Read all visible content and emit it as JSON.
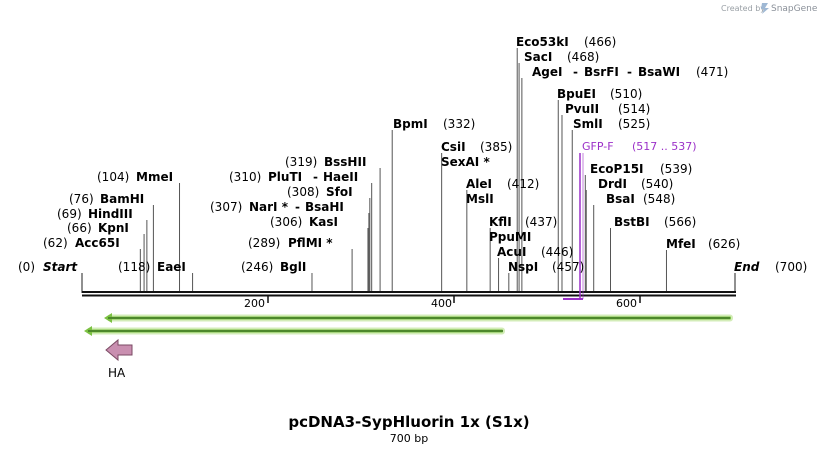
{
  "header": {
    "credit": "Created by",
    "brand": "SnapGene"
  },
  "map": {
    "title": "pcDNA3-SypHluorin 1x (S1x)",
    "length_label": "700 bp",
    "start_label": "Start",
    "start_pos": "(0)",
    "end_label": "End",
    "end_pos": "(700)",
    "ticks": [
      "200",
      "400",
      "600"
    ]
  },
  "enzymes": [
    {
      "id": "acc65i",
      "name": "Acc65I",
      "pos": "(62)",
      "bp": 62
    },
    {
      "id": "kpni",
      "name": "KpnI",
      "pos": "(66)",
      "bp": 66
    },
    {
      "id": "hindiii",
      "name": "HindIII",
      "pos": "(69)",
      "bp": 69
    },
    {
      "id": "bamhi",
      "name": "BamHI",
      "pos": "(76)",
      "bp": 76
    },
    {
      "id": "mmei",
      "name": "MmeI",
      "pos": "(104)",
      "bp": 104
    },
    {
      "id": "eaei",
      "name": "EaeI",
      "pos": "(118)",
      "bp": 118
    },
    {
      "id": "bgli",
      "name": "BglI",
      "pos": "(246)",
      "bp": 246
    },
    {
      "id": "pflmi",
      "name": "PflMI *",
      "pos": "(289)",
      "bp": 289
    },
    {
      "id": "kasi",
      "name": "KasI",
      "pos": "(306)",
      "bp": 306
    },
    {
      "id": "nari",
      "name": "NarI *",
      "name2": "BsaHI",
      "pos": "(307)",
      "bp": 307
    },
    {
      "id": "sfoi",
      "name": "SfoI",
      "pos": "(308)",
      "bp": 308
    },
    {
      "id": "pluti",
      "name": "PluTI",
      "name2": "HaeII",
      "pos": "(310)",
      "bp": 310
    },
    {
      "id": "bsshii",
      "name": "BssHII",
      "pos": "(319)",
      "bp": 319
    },
    {
      "id": "bpmi",
      "name": "BpmI",
      "pos": "(332)",
      "bp": 332
    },
    {
      "id": "csii",
      "name": "CsiI",
      "pos": "(385)",
      "bp": 385
    },
    {
      "id": "sexai",
      "name": "SexAI *",
      "pos": "",
      "bp": 385
    },
    {
      "id": "alei",
      "name": "AleI",
      "pos": "(412)",
      "bp": 412
    },
    {
      "id": "msli",
      "name": "MslI",
      "pos": "",
      "bp": 412
    },
    {
      "id": "kfli",
      "name": "KflI",
      "pos": "(437)",
      "bp": 437
    },
    {
      "id": "ppumi",
      "name": "PpuMI",
      "pos": "",
      "bp": 437
    },
    {
      "id": "acui",
      "name": "AcuI",
      "pos": "(446)",
      "bp": 446
    },
    {
      "id": "nspi",
      "name": "NspI",
      "pos": "(457)",
      "bp": 457
    },
    {
      "id": "eco53ki",
      "name": "Eco53kI",
      "pos": "(466)",
      "bp": 466
    },
    {
      "id": "saci",
      "name": "SacI",
      "pos": "(468)",
      "bp": 468
    },
    {
      "id": "agei",
      "name": "AgeI",
      "name2": "BsrFI",
      "name3": "BsaWI",
      "pos": "(471)",
      "bp": 471
    },
    {
      "id": "bpuei",
      "name": "BpuEI",
      "pos": "(510)",
      "bp": 510
    },
    {
      "id": "pvuii",
      "name": "PvuII",
      "pos": "(514)",
      "bp": 514
    },
    {
      "id": "smli",
      "name": "SmlI",
      "pos": "(525)",
      "bp": 525
    },
    {
      "id": "ecop15i",
      "name": "EcoP15I",
      "pos": "(539)",
      "bp": 539
    },
    {
      "id": "drdi",
      "name": "DrdI",
      "pos": "(540)",
      "bp": 540
    },
    {
      "id": "bsai",
      "name": "BsaI",
      "pos": "(548)",
      "bp": 548
    },
    {
      "id": "bstbi",
      "name": "BstBI",
      "pos": "(566)",
      "bp": 566
    },
    {
      "id": "mfei",
      "name": "MfeI",
      "pos": "(626)",
      "bp": 626
    }
  ],
  "primer": {
    "name": "GFP-F",
    "range": "(517 .. 537)",
    "color": "#9b30c8"
  },
  "features": [
    {
      "id": "gfp-orf-1",
      "color": "#7bc142"
    },
    {
      "id": "gfp-orf-2",
      "color": "#7bc142"
    },
    {
      "id": "ha-tag",
      "label": "HA",
      "color": "#c98fb0"
    }
  ]
}
